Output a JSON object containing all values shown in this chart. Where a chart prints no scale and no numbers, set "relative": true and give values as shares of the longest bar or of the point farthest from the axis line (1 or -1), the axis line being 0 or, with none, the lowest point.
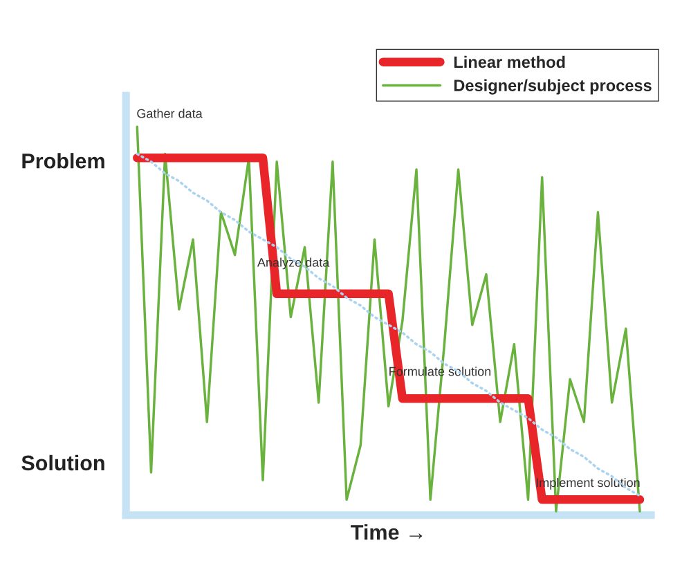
{
  "chart_data": {
    "type": "line",
    "relative": true,
    "xlabel": "Time →",
    "categories": [
      null,
      null,
      null,
      null,
      null,
      null,
      null,
      null,
      null,
      null,
      null,
      null,
      null,
      null,
      null,
      null,
      null,
      null,
      null,
      null,
      null,
      null,
      null,
      null,
      null,
      null,
      null,
      null,
      null,
      null,
      null,
      null,
      null,
      null,
      null,
      null,
      null
    ],
    "grid": false,
    "legend": "top right",
    "marker": "none",
    "series": [
      {
        "name": "Linear method",
        "color": "#e8262a",
        "line_style": "solid",
        "values": [
          0.92,
          0.92,
          0.92,
          0.92,
          0.92,
          0.92,
          0.92,
          0.92,
          0.92,
          0.92,
          0.57,
          0.57,
          0.57,
          0.57,
          0.57,
          0.57,
          0.57,
          0.57,
          0.57,
          0.3,
          0.3,
          0.3,
          0.3,
          0.3,
          0.3,
          0.3,
          0.3,
          0.3,
          0.3,
          0.04,
          0.04,
          0.04,
          0.04,
          0.04,
          0.04,
          0.04,
          0.04
        ]
      },
      {
        "name": "Designer/subject process",
        "color": "#6ab23e",
        "line_style": "solid",
        "values": [
          1.0,
          0.11,
          0.93,
          0.53,
          0.71,
          0.24,
          0.78,
          0.67,
          0.92,
          0.09,
          0.91,
          0.51,
          0.69,
          0.29,
          0.91,
          0.04,
          0.18,
          0.71,
          0.28,
          0.5,
          0.89,
          0.04,
          0.44,
          0.89,
          0.49,
          0.62,
          0.24,
          0.44,
          0.04,
          0.87,
          0.01,
          0.35,
          0.24,
          0.78,
          0.29,
          0.48,
          0.01
        ]
      },
      {
        "color": "#a9d3ef",
        "line_style": "dotted",
        "values": [
          0.93,
          0.91,
          0.88,
          0.86,
          0.83,
          0.81,
          0.78,
          0.76,
          0.73,
          0.71,
          0.69,
          0.66,
          0.64,
          0.61,
          0.59,
          0.56,
          0.54,
          0.51,
          0.49,
          0.47,
          0.44,
          0.42,
          0.39,
          0.37,
          0.34,
          0.32,
          0.29,
          0.27,
          0.25,
          0.22,
          0.2,
          0.17,
          0.15,
          0.12,
          0.1,
          0.07,
          0.05
        ]
      }
    ],
    "annotations": [
      "Problem",
      "Solution",
      "Gather data",
      "Analyze data",
      "Formulate solution",
      "Implement solution"
    ]
  }
}
